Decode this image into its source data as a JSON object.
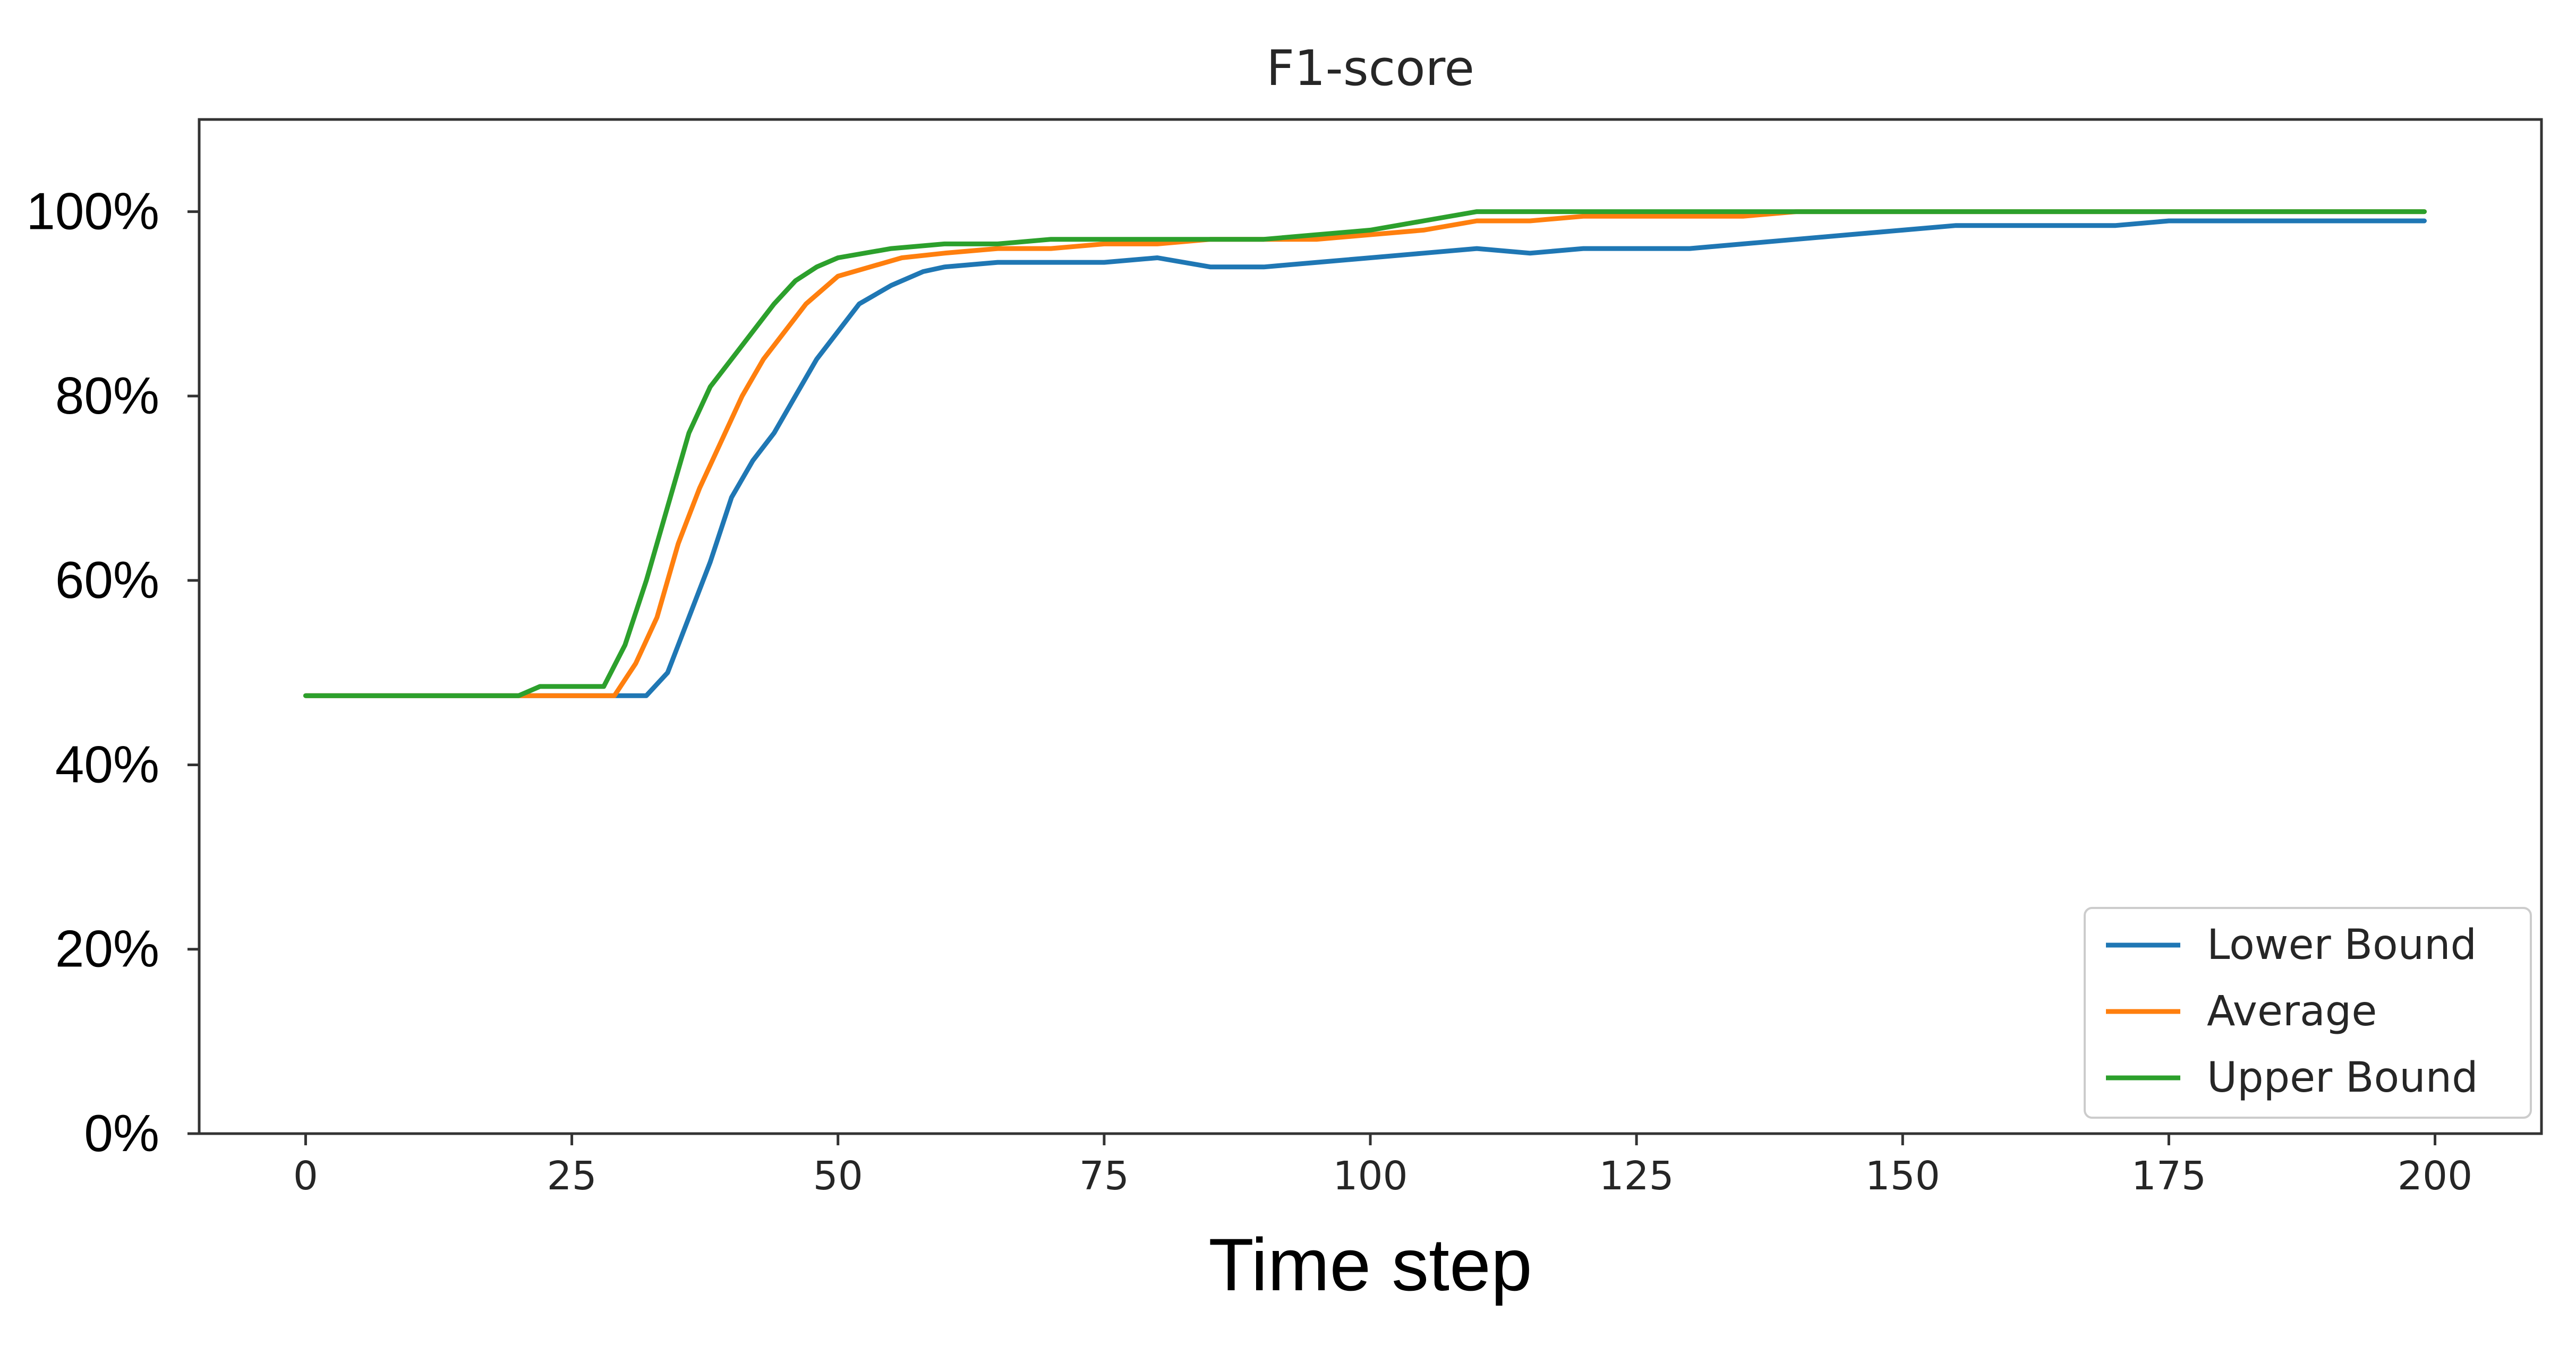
{
  "chart_data": {
    "type": "line",
    "title": "F1-score",
    "xlabel": "Time step",
    "ylabel": "",
    "xlim": [
      -10,
      210
    ],
    "ylim": [
      0,
      1.1
    ],
    "xticks": [
      0,
      25,
      50,
      75,
      100,
      125,
      150,
      175,
      200
    ],
    "xtick_labels": [
      "0",
      "25",
      "50",
      "75",
      "100",
      "125",
      "150",
      "175",
      "200"
    ],
    "yticks": [
      0,
      0.2,
      0.4,
      0.6,
      0.8,
      1.0
    ],
    "ytick_labels": [
      "0%",
      "20%",
      "40%",
      "60%",
      "80%",
      "100%"
    ],
    "grid": false,
    "legend_position": "lower-right",
    "series": [
      {
        "name": "Lower Bound",
        "color": "#1f77b4",
        "points": [
          [
            0,
            0.475
          ],
          [
            20,
            0.475
          ],
          [
            32,
            0.475
          ],
          [
            34,
            0.5
          ],
          [
            36,
            0.56
          ],
          [
            38,
            0.62
          ],
          [
            40,
            0.69
          ],
          [
            42,
            0.73
          ],
          [
            44,
            0.76
          ],
          [
            46,
            0.8
          ],
          [
            48,
            0.84
          ],
          [
            50,
            0.87
          ],
          [
            52,
            0.9
          ],
          [
            55,
            0.92
          ],
          [
            58,
            0.935
          ],
          [
            60,
            0.94
          ],
          [
            65,
            0.945
          ],
          [
            70,
            0.945
          ],
          [
            75,
            0.945
          ],
          [
            80,
            0.95
          ],
          [
            85,
            0.94
          ],
          [
            90,
            0.94
          ],
          [
            95,
            0.945
          ],
          [
            100,
            0.95
          ],
          [
            105,
            0.955
          ],
          [
            110,
            0.96
          ],
          [
            115,
            0.955
          ],
          [
            120,
            0.96
          ],
          [
            125,
            0.96
          ],
          [
            130,
            0.96
          ],
          [
            135,
            0.965
          ],
          [
            140,
            0.97
          ],
          [
            145,
            0.975
          ],
          [
            150,
            0.98
          ],
          [
            155,
            0.985
          ],
          [
            160,
            0.985
          ],
          [
            170,
            0.985
          ],
          [
            175,
            0.99
          ],
          [
            180,
            0.99
          ],
          [
            190,
            0.99
          ],
          [
            199,
            0.99
          ]
        ]
      },
      {
        "name": "Average",
        "color": "#ff7f0e",
        "points": [
          [
            0,
            0.475
          ],
          [
            20,
            0.475
          ],
          [
            29,
            0.475
          ],
          [
            31,
            0.51
          ],
          [
            33,
            0.56
          ],
          [
            35,
            0.64
          ],
          [
            37,
            0.7
          ],
          [
            39,
            0.75
          ],
          [
            41,
            0.8
          ],
          [
            43,
            0.84
          ],
          [
            45,
            0.87
          ],
          [
            47,
            0.9
          ],
          [
            50,
            0.93
          ],
          [
            53,
            0.94
          ],
          [
            56,
            0.95
          ],
          [
            60,
            0.955
          ],
          [
            65,
            0.96
          ],
          [
            70,
            0.96
          ],
          [
            75,
            0.965
          ],
          [
            80,
            0.965
          ],
          [
            85,
            0.97
          ],
          [
            90,
            0.97
          ],
          [
            95,
            0.97
          ],
          [
            100,
            0.975
          ],
          [
            105,
            0.98
          ],
          [
            110,
            0.99
          ],
          [
            115,
            0.99
          ],
          [
            120,
            0.995
          ],
          [
            125,
            0.995
          ],
          [
            130,
            0.995
          ],
          [
            135,
            0.995
          ],
          [
            140,
            1.0
          ],
          [
            150,
            1.0
          ],
          [
            160,
            1.0
          ],
          [
            170,
            1.0
          ],
          [
            180,
            1.0
          ],
          [
            190,
            1.0
          ],
          [
            199,
            1.0
          ]
        ]
      },
      {
        "name": "Upper Bound",
        "color": "#2ca02c",
        "points": [
          [
            0,
            0.475
          ],
          [
            20,
            0.475
          ],
          [
            22,
            0.485
          ],
          [
            28,
            0.485
          ],
          [
            30,
            0.53
          ],
          [
            32,
            0.6
          ],
          [
            34,
            0.68
          ],
          [
            36,
            0.76
          ],
          [
            38,
            0.81
          ],
          [
            40,
            0.84
          ],
          [
            42,
            0.87
          ],
          [
            44,
            0.9
          ],
          [
            46,
            0.925
          ],
          [
            48,
            0.94
          ],
          [
            50,
            0.95
          ],
          [
            55,
            0.96
          ],
          [
            60,
            0.965
          ],
          [
            65,
            0.965
          ],
          [
            70,
            0.97
          ],
          [
            75,
            0.97
          ],
          [
            80,
            0.97
          ],
          [
            85,
            0.97
          ],
          [
            90,
            0.97
          ],
          [
            95,
            0.975
          ],
          [
            100,
            0.98
          ],
          [
            105,
            0.99
          ],
          [
            110,
            1.0
          ],
          [
            120,
            1.0
          ],
          [
            130,
            1.0
          ],
          [
            140,
            1.0
          ],
          [
            150,
            1.0
          ],
          [
            160,
            1.0
          ],
          [
            170,
            1.0
          ],
          [
            180,
            1.0
          ],
          [
            190,
            1.0
          ],
          [
            199,
            1.0
          ]
        ]
      }
    ]
  }
}
